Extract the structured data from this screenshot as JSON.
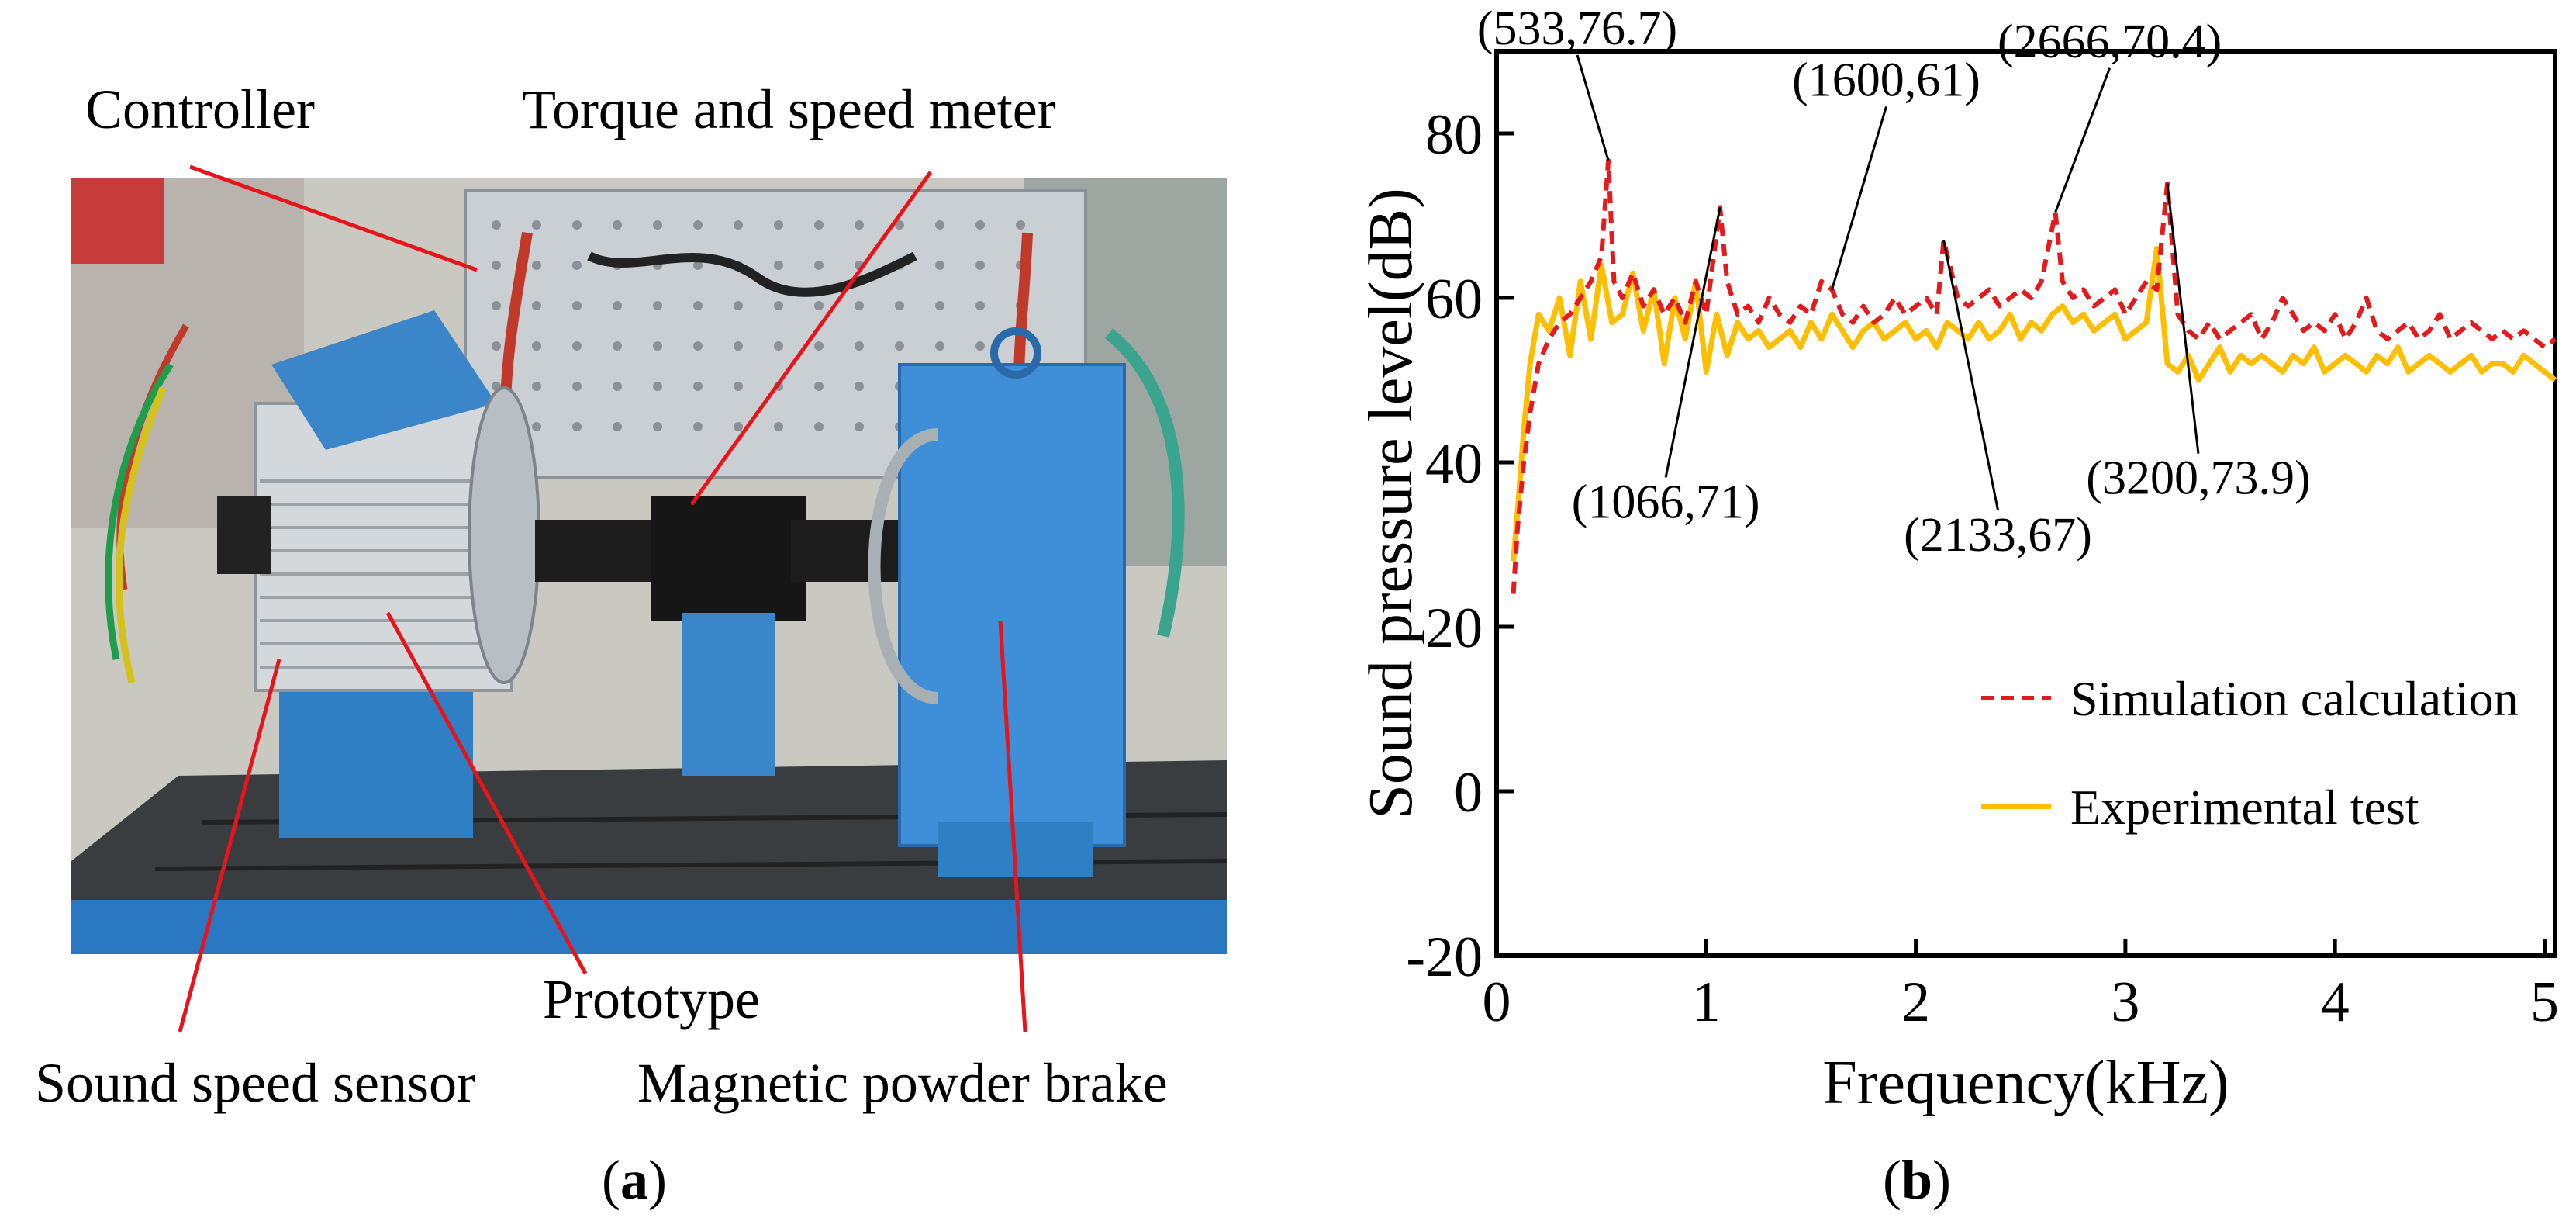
{
  "panel_a": {
    "labels": {
      "controller": "Controller",
      "torque_meter": "Torque and speed meter",
      "prototype": "Prototype",
      "sound_sensor": "Sound speed sensor",
      "brake": "Magnetic powder brake"
    },
    "caption_open": "(",
    "caption_letter": "a",
    "caption_close": ")",
    "colors": {
      "pointer": "#e8141c",
      "motor_blue": "#3a86c8",
      "brake_blue": "#3f8fd8",
      "bench_blue": "#2b78c2",
      "panel_gray": "#c9cfd3"
    }
  },
  "panel_b": {
    "caption_open": "(",
    "caption_letter": "b",
    "caption_close": ")",
    "chart_data": {
      "type": "line",
      "xlabel": "Frequency(kHz)",
      "ylabel": "Sound pressure level(dB)",
      "xlim": [
        0,
        5.05
      ],
      "ylim": [
        -20,
        90
      ],
      "xticks": [
        0,
        1,
        2,
        3,
        4,
        5
      ],
      "xtick_labels": [
        "0",
        "1",
        "2",
        "3",
        "4",
        "5"
      ],
      "yticks": [
        -20,
        0,
        20,
        40,
        60,
        80
      ],
      "ytick_labels": [
        "-20",
        "0",
        "20",
        "40",
        "60",
        "80"
      ],
      "grid": false,
      "legend_position": "bottom-right",
      "series": [
        {
          "name": "Simulation calculation",
          "color": "#e41a1c",
          "style": "dashed",
          "x": [
            0.08,
            0.1,
            0.13,
            0.16,
            0.2,
            0.25,
            0.3,
            0.35,
            0.4,
            0.45,
            0.5,
            0.533,
            0.56,
            0.6,
            0.65,
            0.7,
            0.75,
            0.8,
            0.85,
            0.9,
            0.95,
            1.0,
            1.066,
            1.1,
            1.15,
            1.2,
            1.25,
            1.3,
            1.35,
            1.4,
            1.45,
            1.5,
            1.55,
            1.6,
            1.65,
            1.7,
            1.75,
            1.8,
            1.85,
            1.9,
            1.95,
            2.0,
            2.05,
            2.1,
            2.133,
            2.2,
            2.25,
            2.3,
            2.35,
            2.4,
            2.45,
            2.5,
            2.55,
            2.6,
            2.666,
            2.7,
            2.75,
            2.8,
            2.85,
            2.9,
            2.95,
            3.0,
            3.05,
            3.1,
            3.15,
            3.2,
            3.25,
            3.3,
            3.35,
            3.4,
            3.45,
            3.5,
            3.55,
            3.6,
            3.65,
            3.7,
            3.75,
            3.8,
            3.85,
            3.9,
            3.95,
            4.0,
            4.05,
            4.1,
            4.15,
            4.2,
            4.25,
            4.3,
            4.35,
            4.4,
            4.45,
            4.5,
            4.55,
            4.6,
            4.65,
            4.7,
            4.75,
            4.8,
            4.85,
            4.9,
            4.95,
            5.0,
            5.05
          ],
          "y": [
            24,
            32,
            40,
            46,
            52,
            55,
            57,
            58,
            60,
            62,
            65,
            76.7,
            62,
            60,
            63,
            59,
            61,
            58,
            60,
            57,
            62,
            58,
            71,
            62,
            58,
            59,
            57,
            60,
            58,
            57,
            59,
            58,
            62,
            61,
            58,
            57,
            59,
            57,
            58,
            60,
            58,
            59,
            60,
            58,
            67,
            60,
            59,
            60,
            61,
            59,
            60,
            61,
            60,
            62,
            70.4,
            62,
            60,
            61,
            59,
            60,
            61,
            58,
            60,
            62,
            61,
            73.9,
            58,
            56,
            55,
            57,
            55,
            56,
            57,
            58,
            55,
            57,
            60,
            58,
            56,
            57,
            56,
            58,
            55,
            57,
            60,
            56,
            55,
            56,
            57,
            55,
            56,
            58,
            55,
            56,
            57,
            56,
            55,
            56,
            55,
            56,
            55,
            54,
            55
          ]
        },
        {
          "name": "Experimental test",
          "color": "#ffbe00",
          "style": "solid",
          "x": [
            0.08,
            0.1,
            0.13,
            0.16,
            0.2,
            0.25,
            0.3,
            0.35,
            0.4,
            0.45,
            0.5,
            0.55,
            0.6,
            0.65,
            0.7,
            0.75,
            0.8,
            0.85,
            0.9,
            0.95,
            1.0,
            1.05,
            1.1,
            1.15,
            1.2,
            1.25,
            1.3,
            1.35,
            1.4,
            1.45,
            1.5,
            1.55,
            1.6,
            1.65,
            1.7,
            1.75,
            1.8,
            1.85,
            1.9,
            1.95,
            2.0,
            2.05,
            2.1,
            2.15,
            2.2,
            2.25,
            2.3,
            2.35,
            2.4,
            2.45,
            2.5,
            2.55,
            2.6,
            2.65,
            2.7,
            2.75,
            2.8,
            2.85,
            2.9,
            2.95,
            3.0,
            3.05,
            3.1,
            3.15,
            3.2,
            3.25,
            3.3,
            3.35,
            3.4,
            3.45,
            3.5,
            3.55,
            3.6,
            3.65,
            3.7,
            3.75,
            3.8,
            3.85,
            3.9,
            3.95,
            4.0,
            4.05,
            4.1,
            4.15,
            4.2,
            4.25,
            4.3,
            4.35,
            4.4,
            4.45,
            4.5,
            4.55,
            4.6,
            4.65,
            4.7,
            4.75,
            4.8,
            4.85,
            4.9,
            4.95,
            5.0,
            5.05
          ],
          "y": [
            28,
            34,
            44,
            52,
            58,
            56,
            60,
            53,
            62,
            55,
            64,
            57,
            58,
            63,
            56,
            61,
            52,
            60,
            55,
            62,
            51,
            58,
            53,
            57,
            55,
            56,
            54,
            55,
            56,
            54,
            57,
            55,
            58,
            56,
            54,
            56,
            57,
            55,
            56,
            57,
            55,
            56,
            54,
            57,
            56,
            55,
            57,
            55,
            56,
            58,
            55,
            57,
            56,
            58,
            59,
            57,
            58,
            56,
            57,
            58,
            55,
            56,
            57,
            66,
            52,
            51,
            53,
            50,
            52,
            54,
            51,
            53,
            52,
            53,
            52,
            51,
            53,
            52,
            54,
            51,
            52,
            53,
            52,
            51,
            53,
            52,
            54,
            51,
            52,
            53,
            52,
            51,
            52,
            53,
            51,
            52,
            52,
            51,
            53,
            52,
            51,
            50
          ]
        }
      ],
      "annotations": [
        {
          "label": "(533,76.7)",
          "x": 0.533,
          "y": 76.7
        },
        {
          "label": "(1066,71)",
          "x": 1.066,
          "y": 71
        },
        {
          "label": "(1600,61)",
          "x": 1.6,
          "y": 61
        },
        {
          "label": "(2133,67)",
          "x": 2.133,
          "y": 67
        },
        {
          "label": "(2666,70.4)",
          "x": 2.666,
          "y": 70.4
        },
        {
          "label": "(3200,73.9)",
          "x": 3.2,
          "y": 73.9
        }
      ]
    }
  }
}
